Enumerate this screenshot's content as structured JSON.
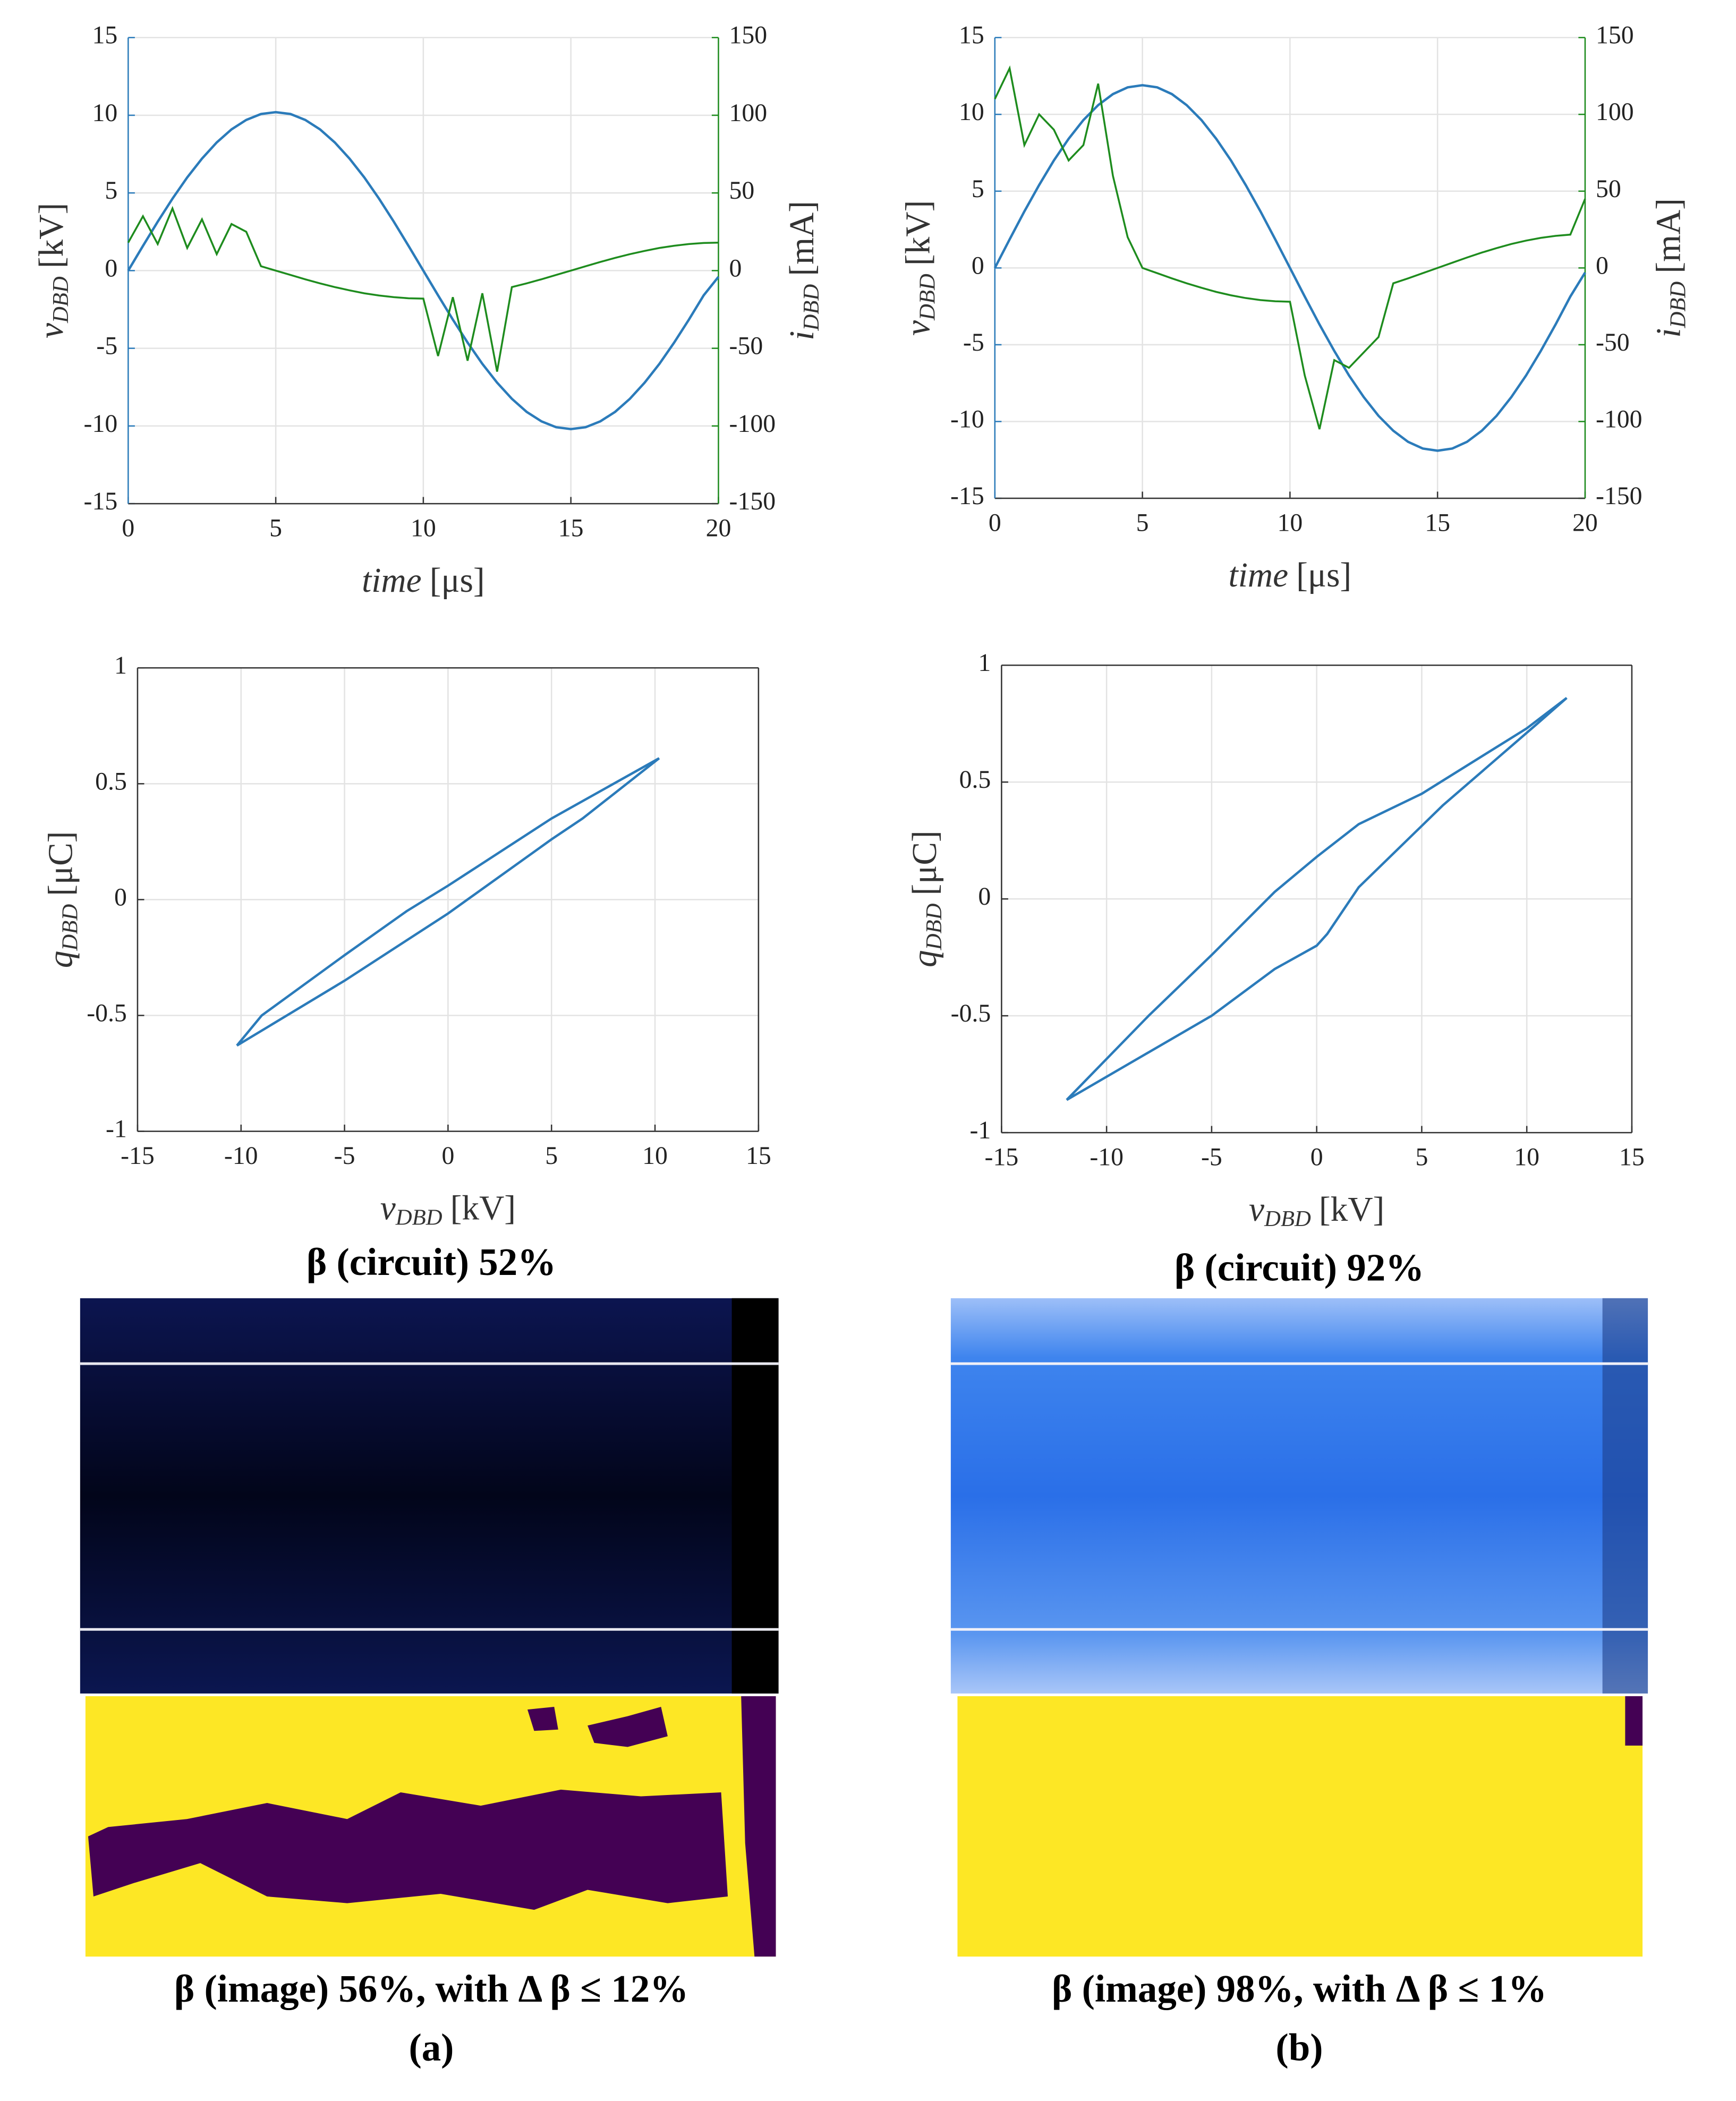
{
  "chart_data": [
    {
      "type": "line",
      "xlabel": {
        "base": "time",
        "unit": "[μs]"
      },
      "ylabel": {
        "base": "v",
        "sub": "DBD",
        "unit": "[kV]"
      },
      "y2label": {
        "base": "i",
        "sub": "DBD",
        "unit": "[mA]"
      },
      "xlim": [
        0,
        20
      ],
      "xticks": [
        0,
        5,
        10,
        15,
        20
      ],
      "ylim": [
        -15,
        15
      ],
      "yticks": [
        -15,
        -10,
        -5,
        0,
        5,
        10,
        15
      ],
      "y2lim": [
        -150,
        150
      ],
      "y2ticks": [
        -150,
        -100,
        -50,
        0,
        50,
        100,
        150
      ],
      "grid": true,
      "x": [
        0,
        0.5,
        1,
        1.5,
        2,
        2.5,
        3,
        3.5,
        4,
        4.5,
        5,
        5.5,
        6,
        6.5,
        7,
        7.5,
        8,
        8.5,
        9,
        9.5,
        10,
        10.5,
        11,
        11.5,
        12,
        12.5,
        13,
        13.5,
        14,
        14.5,
        15,
        15.5,
        16,
        16.5,
        17,
        17.5,
        18,
        18.5,
        19,
        19.5,
        20
      ],
      "series": [
        {
          "color": "#2b7bba",
          "values": [
            0,
            1.59,
            3.15,
            4.63,
            6.0,
            7.21,
            8.25,
            9.09,
            9.7,
            10.08,
            10.2,
            10.08,
            9.7,
            9.09,
            8.25,
            7.21,
            6.0,
            4.63,
            3.15,
            1.59,
            0,
            -1.59,
            -3.15,
            -4.63,
            -6.0,
            -7.21,
            -8.25,
            -9.09,
            -9.7,
            -10.08,
            -10.2,
            -10.08,
            -9.7,
            -9.09,
            -8.25,
            -7.21,
            -6.0,
            -4.63,
            -3.15,
            -1.59,
            -0.4
          ]
        },
        {
          "color": "#1e8c1e",
          "axis": "y2",
          "values": [
            18,
            35,
            17.1,
            40,
            14.6,
            33,
            10.6,
            30,
            25,
            2.8,
            0,
            -2.8,
            -5.6,
            -8.2,
            -10.6,
            -12.7,
            -14.6,
            -16.0,
            -17.1,
            -17.8,
            -18,
            -55,
            -17.1,
            -58,
            -14.6,
            -65,
            -10.6,
            -8.2,
            -5.6,
            -2.8,
            0,
            2.8,
            5.6,
            8.2,
            10.6,
            12.7,
            14.6,
            16.0,
            17.1,
            17.8,
            18
          ]
        }
      ]
    },
    {
      "type": "line",
      "xlabel": {
        "base": "time",
        "unit": "[μs]"
      },
      "ylabel": {
        "base": "v",
        "sub": "DBD",
        "unit": "[kV]"
      },
      "y2label": {
        "base": "i",
        "sub": "DBD",
        "unit": "[mA]"
      },
      "xlim": [
        0,
        20
      ],
      "xticks": [
        0,
        5,
        10,
        15,
        20
      ],
      "ylim": [
        -15,
        15
      ],
      "yticks": [
        -15,
        -10,
        -5,
        0,
        5,
        10,
        15
      ],
      "y2lim": [
        -150,
        150
      ],
      "y2ticks": [
        -150,
        -100,
        -50,
        0,
        50,
        100,
        150
      ],
      "grid": true,
      "x": [
        0,
        0.5,
        1,
        1.5,
        2,
        2.5,
        3,
        3.5,
        4,
        4.5,
        5,
        5.5,
        6,
        6.5,
        7,
        7.5,
        8,
        8.5,
        9,
        9.5,
        10,
        10.5,
        11,
        11.5,
        12,
        12.5,
        13,
        13.5,
        14,
        14.5,
        15,
        15.5,
        16,
        16.5,
        17,
        17.5,
        18,
        18.5,
        19,
        19.5,
        20
      ],
      "series": [
        {
          "color": "#2b7bba",
          "values": [
            0,
            1.86,
            3.68,
            5.4,
            7.0,
            8.41,
            9.63,
            10.6,
            11.32,
            11.76,
            11.9,
            11.76,
            11.32,
            10.6,
            9.63,
            8.41,
            7.0,
            5.4,
            3.68,
            1.86,
            0,
            -1.86,
            -3.68,
            -5.4,
            -7.0,
            -8.41,
            -9.63,
            -10.6,
            -11.32,
            -11.76,
            -11.9,
            -11.76,
            -11.32,
            -10.6,
            -9.63,
            -8.41,
            -7.0,
            -5.4,
            -3.68,
            -1.86,
            -0.3
          ]
        },
        {
          "color": "#1e8c1e",
          "axis": "y2",
          "values": [
            110,
            130,
            80,
            100,
            90,
            70,
            80,
            120,
            60,
            20,
            0,
            -3.4,
            -6.8,
            -10,
            -12.9,
            -15.6,
            -17.8,
            -19.6,
            -20.9,
            -21.7,
            -22,
            -70,
            -105,
            -60,
            -65,
            -55,
            -45,
            -10,
            -6.8,
            -3.4,
            0,
            3.4,
            6.8,
            10,
            12.9,
            15.6,
            17.8,
            19.6,
            20.9,
            21.7,
            45
          ]
        }
      ]
    },
    {
      "type": "line",
      "xlabel": {
        "base": "v",
        "sub": "DBD",
        "unit": "[kV]"
      },
      "ylabel": {
        "base": "q",
        "sub": "DBD",
        "unit": "[μC]"
      },
      "xlim": [
        -15,
        15
      ],
      "xticks": [
        -15,
        -10,
        -5,
        0,
        5,
        10,
        15
      ],
      "ylim": [
        -1,
        1
      ],
      "yticks": [
        -1,
        -0.5,
        0,
        0.5,
        1
      ],
      "grid": true,
      "x": [
        -10.2,
        -9,
        -5,
        -2,
        0,
        5,
        10.2,
        6.5,
        5,
        0,
        -5,
        -10.2
      ],
      "series": [
        {
          "color": "#2b7bba",
          "values": [
            -0.63,
            -0.5,
            -0.24,
            -0.05,
            0.06,
            0.35,
            0.61,
            0.35,
            0.26,
            -0.06,
            -0.35,
            -0.63
          ]
        }
      ]
    },
    {
      "type": "line",
      "xlabel": {
        "base": "v",
        "sub": "DBD",
        "unit": "[kV]"
      },
      "ylabel": {
        "base": "q",
        "sub": "DBD",
        "unit": "[μC]"
      },
      "xlim": [
        -15,
        15
      ],
      "xticks": [
        -15,
        -10,
        -5,
        0,
        5,
        10,
        15
      ],
      "ylim": [
        -1,
        1
      ],
      "yticks": [
        -1,
        -0.5,
        0,
        0.5,
        1
      ],
      "grid": true,
      "x": [
        -11.9,
        -8,
        -5,
        -2,
        0,
        2,
        5,
        10,
        11.9,
        10.5,
        6,
        2,
        0.5,
        0,
        -2,
        -5,
        -11.9
      ],
      "series": [
        {
          "color": "#2b7bba",
          "values": [
            -0.86,
            -0.5,
            -0.24,
            0.03,
            0.18,
            0.32,
            0.45,
            0.73,
            0.86,
            0.75,
            0.4,
            0.05,
            -0.15,
            -0.2,
            -0.3,
            -0.5,
            -0.86
          ]
        }
      ]
    }
  ],
  "captions": {
    "circuit_a": "β (circuit) 52%",
    "circuit_b": "β (circuit) 92%",
    "image_a": "β (image) 56%, with Δ β ≤ 12%",
    "image_b": "β (image) 98%, with Δ β ≤ 1%",
    "panel_a": "(a)",
    "panel_b": "(b)"
  }
}
